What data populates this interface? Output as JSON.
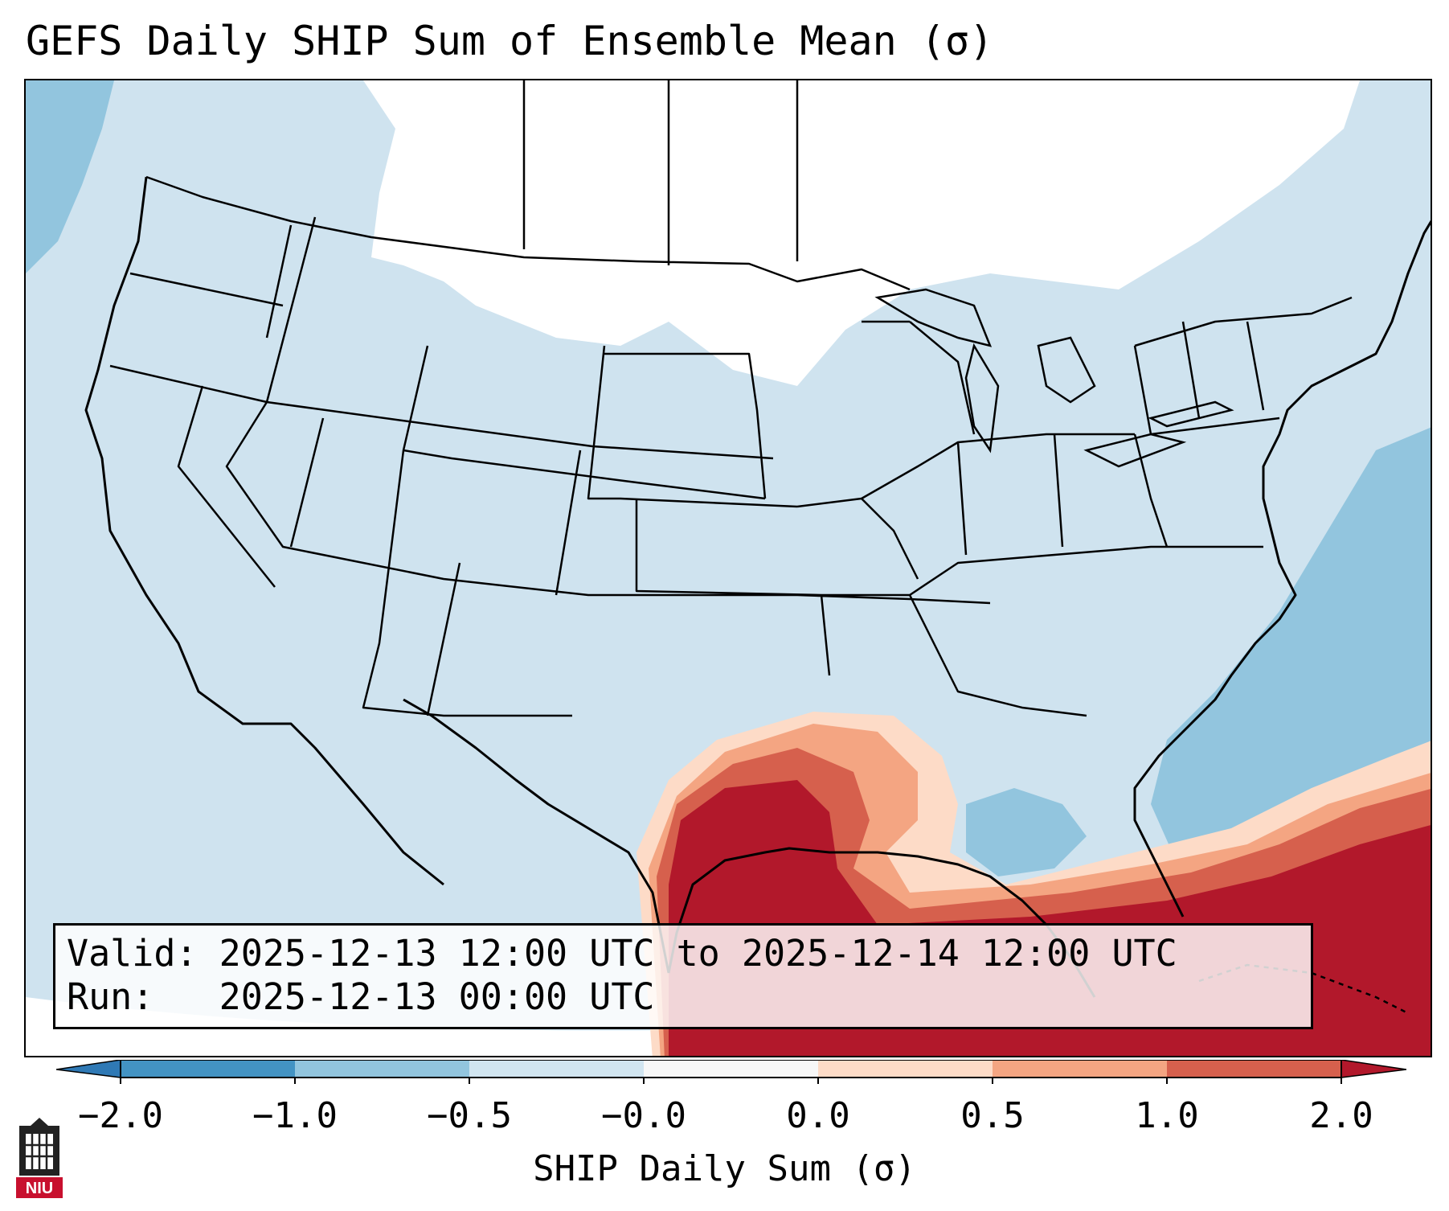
{
  "title": "GEFS Daily SHIP Sum of Ensemble Mean (σ)",
  "info": {
    "valid_label": "Valid:",
    "valid_value": "2025-12-13 12:00 UTC to 2025-12-14 12:00 UTC",
    "run_label": "Run:",
    "run_value": "2025-12-13 00:00 UTC"
  },
  "colorbar": {
    "label": "SHIP Daily Sum (σ)",
    "ticks": [
      "−2.0",
      "−1.0",
      "−0.5",
      "−0.0",
      "0.0",
      "0.5",
      "1.0",
      "2.0"
    ],
    "colors": {
      "below_min": "#2f79b5",
      "n2_n1": "#4393c3",
      "n1_n05": "#92c5de",
      "n05_n0": "#d1e5f0",
      "zero": "#f7f7f7",
      "p0_p05": "#fddbc7",
      "p05_p1": "#f4a582",
      "p1_p2": "#d6604d",
      "above_max": "#b2182b"
    }
  },
  "map": {
    "region": "Contiguous United States",
    "field_colors": {
      "background": "#d1e5f0",
      "none": "#ffffff",
      "light_blue": "#92c5de",
      "peach": "#fddbc7",
      "salmon": "#f4a582",
      "red": "#d6604d",
      "dark_red": "#b2182b"
    }
  },
  "logo": {
    "text": "NIU",
    "color": "#c8102e"
  }
}
